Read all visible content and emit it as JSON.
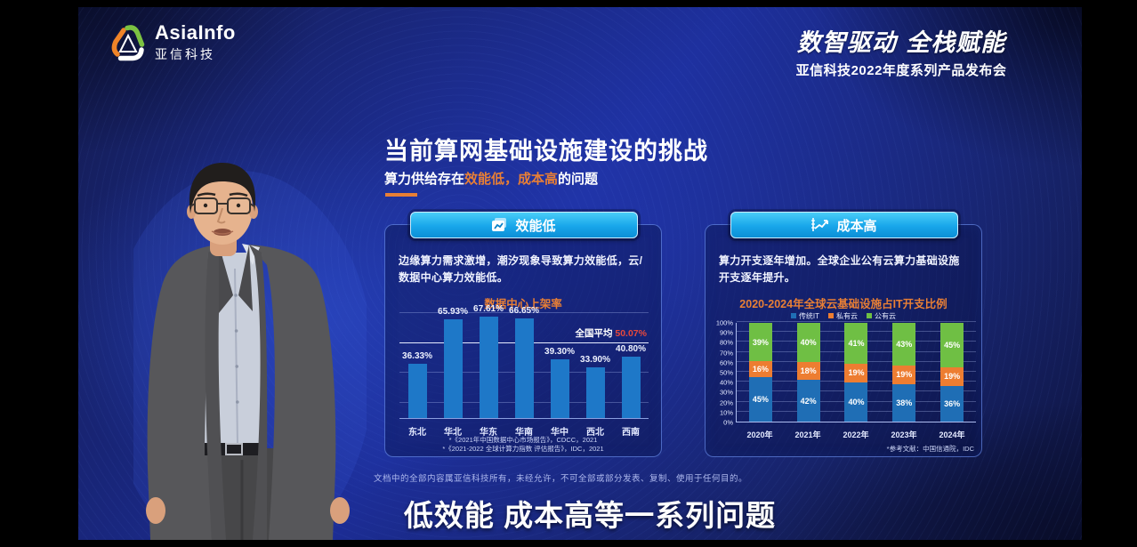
{
  "header": {
    "logo_text_en": "AsiaInfo",
    "logo_text_zh": "亚信科技",
    "slogan": "数智驱动 全栈赋能",
    "event_title": "亚信科技2022年度系列产品发布会"
  },
  "slide": {
    "title": "当前算网基础设施建设的挑战",
    "subtitle_prefix": "算力供给存在",
    "subtitle_highlight": "效能低，成本高",
    "subtitle_suffix": "的问题",
    "left_panel": {
      "header": "效能低",
      "body": "边缘算力需求激增，潮汐现象导致算力效能低，云/数据中心算力效能低。",
      "footnotes": [
        "*《2021年中国数据中心市场报告》，CDCC，2021",
        "*《2021-2022 全球计算力指数 评估报告》，IDC，2021"
      ]
    },
    "right_panel": {
      "header": "成本高",
      "body": "算力开支逐年增加。全球企业公有云算力基础设施开支逐年提升。",
      "footnote": "*参考文献：中国信通院，IDC"
    },
    "disclaimer": "文档中的全部内容属亚信科技所有，未经允许，不可全部或部分发表、复制、使用于任何目的。"
  },
  "caption": "低效能 成本高等一系列问题",
  "colors": {
    "accent_orange": "#e87f35",
    "highlight_red": "#e8483c",
    "button_cyan": "#18a6ea",
    "bar_blue": "#1e78c8",
    "traditional_it_blue": "#1f6eb5",
    "private_cloud_orange": "#ed7d31",
    "public_cloud_green": "#6fbf44"
  },
  "chart_data": [
    {
      "type": "bar",
      "title": "数据中心上架率",
      "categories": [
        "东北",
        "华北",
        "华东",
        "华南",
        "华中",
        "西北",
        "西南"
      ],
      "values": [
        36.33,
        65.93,
        67.61,
        66.65,
        39.3,
        33.9,
        40.8
      ],
      "value_labels": [
        "36.33%",
        "65.93%",
        "67.61%",
        "66.65%",
        "39.30%",
        "33.90%",
        "40.80%"
      ],
      "average": 50.07,
      "average_label": "全国平均",
      "average_value_label": "50.07%",
      "ylim": [
        0,
        70
      ],
      "gridlines_pct": [
        10,
        30,
        50,
        70
      ],
      "bar_color": "#1e78c8",
      "legend_position": "none"
    },
    {
      "type": "stacked-bar",
      "title": "2020-2024年全球云基础设施占IT开支比例",
      "categories": [
        "2020年",
        "2021年",
        "2022年",
        "2023年",
        "2024年"
      ],
      "series": [
        {
          "name": "传统IT",
          "color": "#1f6eb5",
          "values": [
            45,
            42,
            40,
            38,
            36
          ]
        },
        {
          "name": "私有云",
          "color": "#ed7d31",
          "values": [
            16,
            18,
            19,
            19,
            19
          ]
        },
        {
          "name": "公有云",
          "color": "#6fbf44",
          "values": [
            39,
            40,
            41,
            43,
            45
          ]
        }
      ],
      "y_ticks": [
        "100%",
        "90%",
        "80%",
        "70%",
        "60%",
        "50%",
        "40%",
        "30%",
        "20%",
        "10%",
        "0%"
      ],
      "ylim": [
        0,
        100
      ],
      "grid": true,
      "legend_position": "top"
    }
  ]
}
